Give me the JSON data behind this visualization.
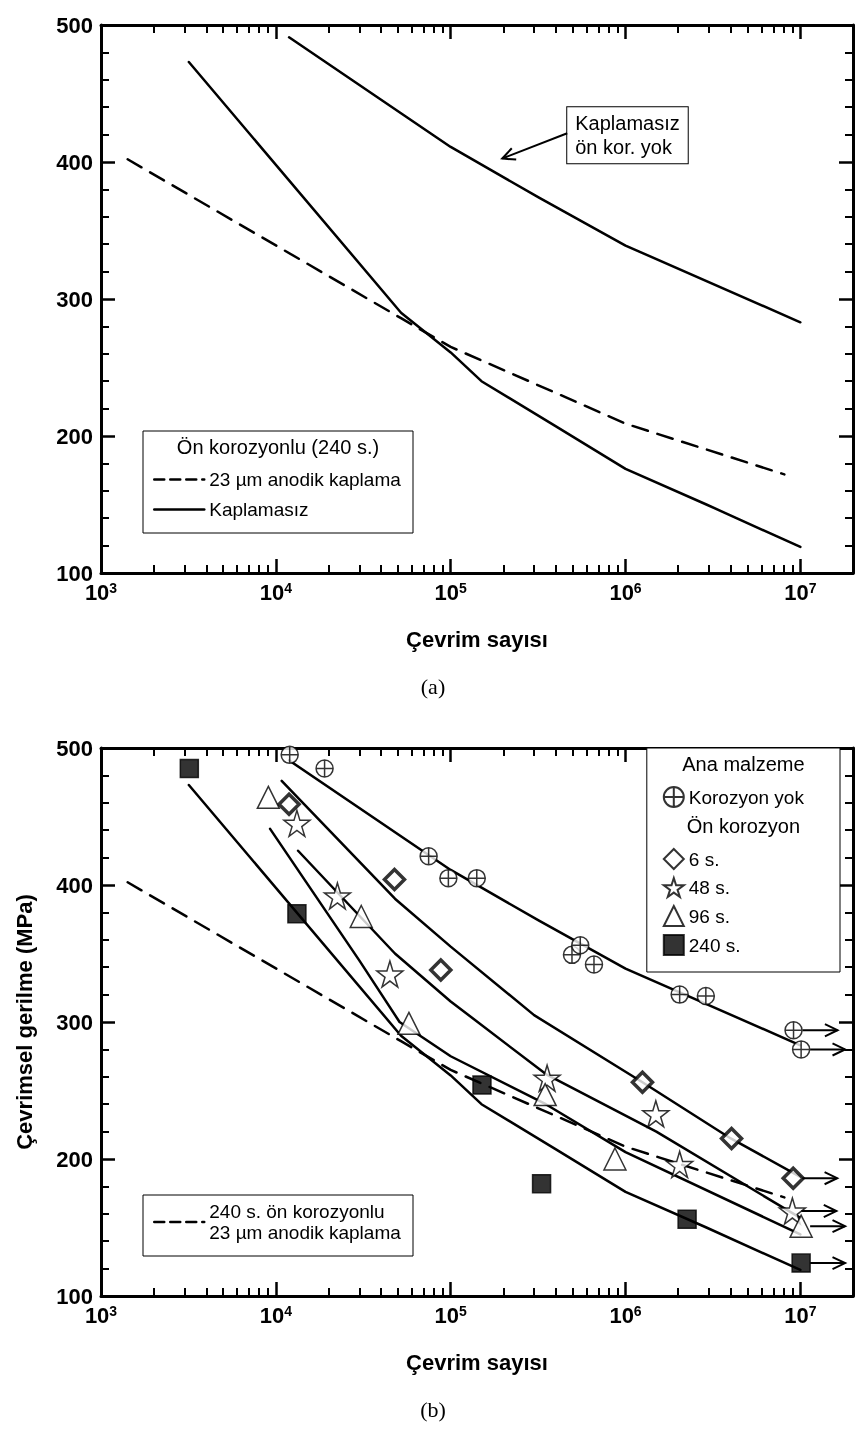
{
  "chart_data": [
    {
      "type": "line",
      "xlabel": "Çevrim sayısı",
      "log": "x",
      "xlim": [
        1000,
        20000000
      ],
      "xticks": [
        {
          "value": 1000,
          "label": "10$^{3}$"
        },
        {
          "value": 10000,
          "label": "10$^{4}$"
        },
        {
          "value": 100000,
          "label": "10$^{5}$"
        },
        {
          "value": 1000000,
          "label": "10$^{6}$"
        },
        {
          "value": 10000000,
          "label": "10$^{7}$"
        }
      ],
      "ylim": [
        100,
        500
      ],
      "yticks": [
        100,
        200,
        300,
        400,
        500
      ],
      "grid": false,
      "legend": "bottom left",
      "legend_title": "Ön korozyonlu (240 s.)",
      "series": [
        {
          "name": "23 µm anodik kaplama",
          "color": "#000000",
          "line_style": "dashed",
          "marker": "none",
          "x": [
            1420,
            52000,
            100000,
            460000,
            1000000,
            8100000
          ],
          "values": [
            402,
            286,
            265,
            228,
            209,
            172
          ]
        },
        {
          "name": "Kaplamasız",
          "color": "#000000",
          "line_style": "solid",
          "marker": "none",
          "x": [
            3180,
            52000,
            100000,
            150000,
            400000,
            1000000,
            2900000,
            10000000
          ],
          "values": [
            473,
            290,
            261,
            240,
            207,
            176,
            150,
            119
          ]
        },
        {
          "color": "#000000",
          "line_style": "solid",
          "marker": "none",
          "x": [
            11900,
            100000,
            320000,
            1000000,
            10000000
          ],
          "values": [
            491,
            411,
            374,
            339,
            283
          ]
        }
      ],
      "annotations": [
        "Kaplamasız\nön kor. yok",
        "(a)"
      ]
    },
    {
      "type": "scatter",
      "xlabel": "Çevrim sayısı",
      "ylabel": "Çevrimsel gerilme (MPa)",
      "log": "x",
      "xlim": [
        1000,
        20000000
      ],
      "xticks": [
        {
          "value": 1000,
          "label": "10$^{3}$"
        },
        {
          "value": 10000,
          "label": "10$^{4}$"
        },
        {
          "value": 100000,
          "label": "10$^{5}$"
        },
        {
          "value": 1000000,
          "label": "10$^{6}$"
        },
        {
          "value": 10000000,
          "label": "10$^{7}$"
        }
      ],
      "ylim": [
        100,
        500
      ],
      "yticks": [
        100,
        200,
        300,
        400,
        500
      ],
      "grid": false,
      "legend": [
        "top right",
        "bottom left"
      ],
      "legend_title": [
        "Ana malzeme",
        "Ön korozyon"
      ],
      "series": [
        {
          "type": "line",
          "name": "240 s. ön korozyonlu\n23 µm anodik kaplama",
          "color": "#000000",
          "line_style": "dashed",
          "marker": "none",
          "x": [
            1420,
            52000,
            100000,
            460000,
            1000000,
            8100000
          ],
          "values": [
            402,
            286,
            265,
            228,
            209,
            172
          ]
        },
        {
          "type": "line",
          "color": "#000000",
          "line_style": "solid",
          "marker": "none",
          "x": [
            11900,
            100000,
            320000,
            1000000,
            10000000
          ],
          "values": [
            491,
            411,
            374,
            339,
            283
          ]
        },
        {
          "type": "line",
          "color": "#000000",
          "line_style": "solid",
          "marker": "none",
          "x": [
            10800,
            48000,
            100000,
            300000,
            1250000,
            4000000,
            10000000
          ],
          "values": [
            476,
            390,
            355,
            305,
            256,
            215,
            187
          ]
        },
        {
          "type": "line",
          "color": "#000000",
          "line_style": "solid",
          "marker": "none",
          "x": [
            13400,
            48000,
            100000,
            350000,
            1500000,
            10000000
          ],
          "values": [
            425,
            350,
            315,
            262,
            220,
            157
          ]
        },
        {
          "type": "line",
          "color": "#000000",
          "line_style": "solid",
          "marker": "none",
          "x": [
            9270,
            30000,
            51000,
            100000,
            350000,
            1000000,
            10000000
          ],
          "values": [
            441,
            345,
            300,
            275,
            240,
            205,
            145
          ]
        },
        {
          "type": "line",
          "color": "#000000",
          "line_style": "solid",
          "marker": "none",
          "x": [
            3180,
            52000,
            100000,
            150000,
            400000,
            1000000,
            2900000,
            10000000
          ],
          "values": [
            473,
            290,
            261,
            240,
            207,
            176,
            150,
            119
          ]
        },
        {
          "name": "Korozyon yok",
          "color": "#000000",
          "marker": "cross",
          "x": [
            12000,
            19000,
            74800,
            97000,
            141000,
            494000,
            551000,
            660000,
            2040000,
            2880000,
            9140000,
            10100000
          ],
          "values": [
            495,
            485,
            421,
            405,
            405,
            349,
            356,
            342,
            320,
            319,
            294,
            280
          ]
        },
        {
          "name": "6 s.",
          "color": "#000000",
          "marker": "diamond",
          "x": [
            11900,
            47700,
            87800,
            1250000,
            4040000,
            9100000
          ],
          "values": [
            459,
            404,
            338,
            256,
            215,
            186
          ]
        },
        {
          "name": "48 s.",
          "color": "#000000",
          "marker": "star",
          "x": [
            13200,
            22500,
            44900,
            356000,
            1490000,
            2040000,
            9000000
          ],
          "values": [
            445,
            392,
            335,
            259,
            233,
            196,
            162
          ]
        },
        {
          "name": "96 s.",
          "color": "#000000",
          "marker": "triangle",
          "x": [
            9060,
            30800,
            57700,
            347000,
            870000,
            10100000
          ],
          "values": [
            464,
            377,
            299,
            247,
            200,
            151
          ]
        },
        {
          "name": "240 s.",
          "color": "#000000",
          "marker": "square",
          "x": [
            3200,
            13200,
            151000,
            331000,
            2250000,
            10100000
          ],
          "values": [
            485,
            379,
            254,
            182,
            156,
            124
          ]
        }
      ],
      "annotations": [
        "(b)"
      ]
    }
  ]
}
